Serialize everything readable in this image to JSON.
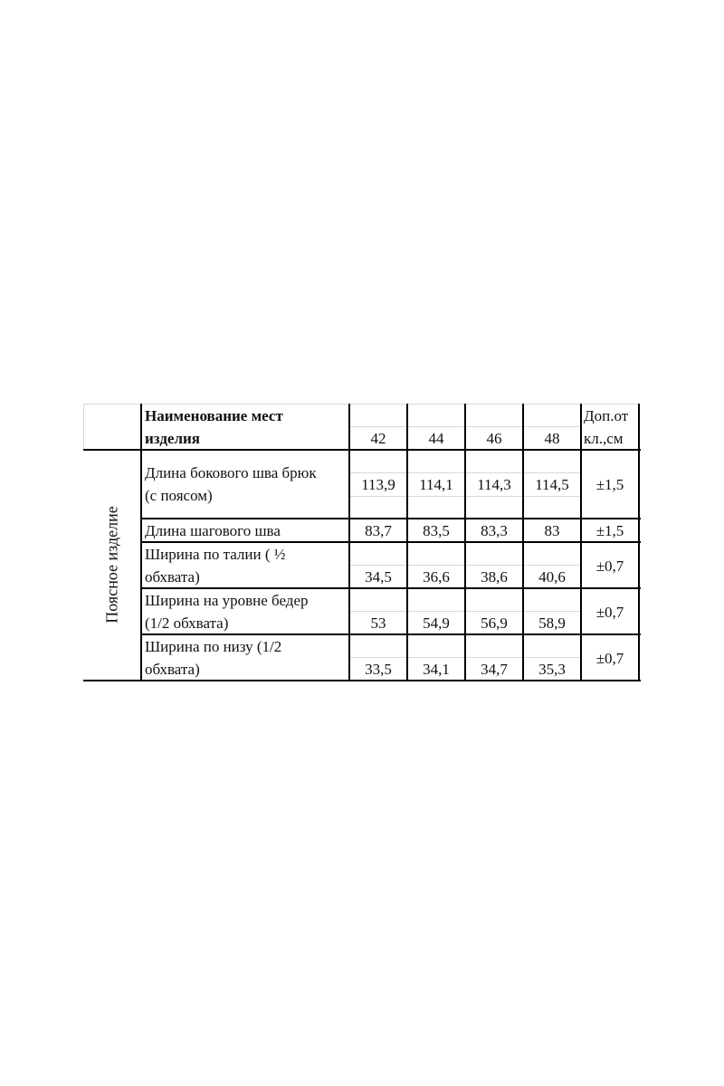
{
  "table": {
    "header": {
      "name_line1": "Наименование мест",
      "name_line2": "изделия",
      "sizes": [
        "42",
        "44",
        "46",
        "48"
      ],
      "tolerance_line1": "Доп.от",
      "tolerance_line2": "кл.,см"
    },
    "group_label": "Поясное изделие",
    "rows": [
      {
        "name_line1": "Длина бокового шва брюк",
        "name_line2": "(с поясом)",
        "values": [
          "113,9",
          "114,1",
          "114,3",
          "114,5"
        ],
        "tolerance": "±1,5"
      },
      {
        "name_line1": "Длина шагового шва",
        "name_line2": "",
        "values": [
          "83,7",
          "83,5",
          "83,3",
          "83"
        ],
        "tolerance": "±1,5"
      },
      {
        "name_line1": "Ширина по талии ( ½",
        "name_line2": "обхвата)",
        "values": [
          "34,5",
          "36,6",
          "38,6",
          "40,6"
        ],
        "tolerance": "±0,7"
      },
      {
        "name_line1": "Ширина  на уровне бедер",
        "name_line2": "(1/2 обхвата)",
        "values": [
          "53",
          "54,9",
          "56,9",
          "58,9"
        ],
        "tolerance": "±0,7"
      },
      {
        "name_line1": "Ширина по низу (1/2",
        "name_line2": "обхвата)",
        "values": [
          "33,5",
          "34,1",
          "34,7",
          "35,3"
        ],
        "tolerance": "±0,7"
      }
    ]
  }
}
